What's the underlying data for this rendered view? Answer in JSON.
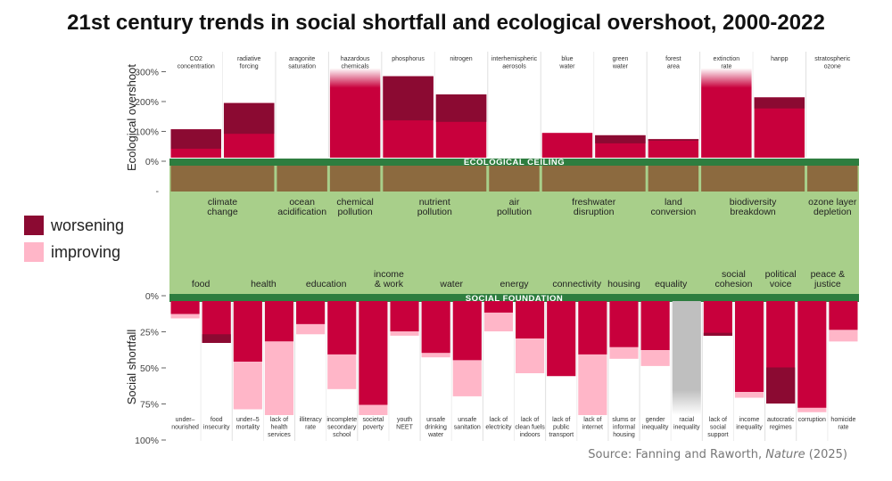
{
  "title": "21st century trends in social shortfall and ecological overshoot, 2000-2022",
  "legend": {
    "worsening": "worsening",
    "improving": "improving"
  },
  "source": {
    "prefix": "Source: Fanning and Raworth, ",
    "journal": "Nature",
    "suffix": " (2025)"
  },
  "colors": {
    "worsening": "#8b0a32",
    "improving": "#ffb6c8",
    "current": "#c8003c",
    "ceiling": "#2e7d3f",
    "doughnut": "#a8cf8a",
    "brown": "#8c6a3f",
    "grey": "#bfbfbf"
  },
  "chart_data": [
    {
      "type": "bar",
      "title": "Ecological overshoot",
      "ylabel": "Ecological overshoot",
      "ylim": [
        0,
        300
      ],
      "yticks": [
        "0%",
        "100%",
        "200%",
        "300%"
      ],
      "ceiling_label": "ECOLOGICAL CEILING",
      "groups": [
        {
          "name": "climate change",
          "lines": [
            "climate",
            "change"
          ]
        },
        {
          "name": "ocean acidification",
          "lines": [
            "ocean",
            "acidification"
          ]
        },
        {
          "name": "chemical pollution",
          "lines": [
            "chemical",
            "pollution"
          ]
        },
        {
          "name": "nutrient pollution",
          "lines": [
            "nutrient",
            "pollution"
          ]
        },
        {
          "name": "air pollution",
          "lines": [
            "air",
            "pollution"
          ]
        },
        {
          "name": "freshwater disruption",
          "lines": [
            "freshwater",
            "disruption"
          ]
        },
        {
          "name": "land conversion",
          "lines": [
            "land",
            "conversion"
          ]
        },
        {
          "name": "biodiversity breakdown",
          "lines": [
            "biodiversity",
            "breakdown"
          ]
        },
        {
          "name": "ozone layer depletion",
          "lines": [
            "ozone layer",
            "depletion"
          ]
        }
      ],
      "indicators": [
        {
          "label": [
            "CO2",
            "concentration"
          ],
          "group": 0,
          "start": 30,
          "end": 95,
          "trend": "worsening"
        },
        {
          "label": [
            "radiative",
            "forcing"
          ],
          "group": 0,
          "start": 80,
          "end": 183,
          "trend": "worsening"
        },
        {
          "label": [
            "aragonite",
            "saturation"
          ],
          "group": 1,
          "start": 0,
          "end": 0,
          "trend": "none"
        },
        {
          "label": [
            "hazardous",
            "chemicals"
          ],
          "group": 2,
          "start": 300,
          "end": 300,
          "trend": "unknown"
        },
        {
          "label": [
            "phosphorus"
          ],
          "group": 3,
          "start": 125,
          "end": 273,
          "trend": "worsening"
        },
        {
          "label": [
            "nitrogen"
          ],
          "group": 3,
          "start": 120,
          "end": 212,
          "trend": "worsening"
        },
        {
          "label": [
            "interhemispheric",
            "aerosols"
          ],
          "group": 4,
          "start": 0,
          "end": 0,
          "trend": "none"
        },
        {
          "label": [
            "blue",
            "water"
          ],
          "group": 5,
          "start": 83,
          "end": 83,
          "trend": "none"
        },
        {
          "label": [
            "green",
            "water"
          ],
          "group": 5,
          "start": 48,
          "end": 75,
          "trend": "worsening"
        },
        {
          "label": [
            "forest",
            "area"
          ],
          "group": 6,
          "start": 57,
          "end": 62,
          "trend": "worsening"
        },
        {
          "label": [
            "extinction",
            "rate"
          ],
          "group": 7,
          "start": 300,
          "end": 300,
          "trend": "unknown"
        },
        {
          "label": [
            "hanpp"
          ],
          "group": 7,
          "start": 165,
          "end": 202,
          "trend": "worsening"
        },
        {
          "label": [
            "stratospheric",
            "ozone"
          ],
          "group": 8,
          "start": 0,
          "end": 0,
          "trend": "none"
        }
      ]
    },
    {
      "type": "bar",
      "title": "Social shortfall",
      "ylabel": "Social shortfall",
      "ylim": [
        0,
        100
      ],
      "yticks": [
        "0%",
        "25%",
        "50%",
        "75%",
        "100%"
      ],
      "foundation_label": "SOCIAL FOUNDATION",
      "groups": [
        {
          "name": "food",
          "lines": [
            "food"
          ]
        },
        {
          "name": "health",
          "lines": [
            "health"
          ]
        },
        {
          "name": "education",
          "lines": [
            "education"
          ]
        },
        {
          "name": "income & work",
          "lines": [
            "income",
            "& work"
          ]
        },
        {
          "name": "water",
          "lines": [
            "water"
          ]
        },
        {
          "name": "energy",
          "lines": [
            "energy"
          ]
        },
        {
          "name": "connectivity",
          "lines": [
            "connectivity"
          ]
        },
        {
          "name": "housing",
          "lines": [
            "housing"
          ]
        },
        {
          "name": "equality",
          "lines": [
            "equality"
          ]
        },
        {
          "name": "social cohesion",
          "lines": [
            "social",
            "cohesion"
          ]
        },
        {
          "name": "political voice",
          "lines": [
            "political",
            "voice"
          ]
        },
        {
          "name": "peace & justice",
          "lines": [
            "peace &",
            "justice"
          ]
        }
      ],
      "indicators": [
        {
          "label": [
            "under–",
            "nourished"
          ],
          "group": 0,
          "start": 12,
          "end": 9,
          "trend": "improving"
        },
        {
          "label": [
            "food",
            "insecurity"
          ],
          "group": 0,
          "start": 23,
          "end": 29,
          "trend": "worsening"
        },
        {
          "label": [
            "under–5",
            "mortality"
          ],
          "group": 1,
          "start": 75,
          "end": 42,
          "trend": "improving"
        },
        {
          "label": [
            "lack of",
            "health",
            "services"
          ],
          "group": 1,
          "start": 79,
          "end": 28,
          "trend": "improving"
        },
        {
          "label": [
            "illiteracy",
            "rate"
          ],
          "group": 2,
          "start": 23,
          "end": 16,
          "trend": "improving"
        },
        {
          "label": [
            "incomplete",
            "secondary",
            "school"
          ],
          "group": 2,
          "start": 61,
          "end": 37,
          "trend": "improving"
        },
        {
          "label": [
            "societal",
            "poverty"
          ],
          "group": 3,
          "start": 79,
          "end": 72,
          "trend": "improving"
        },
        {
          "label": [
            "youth",
            "NEET"
          ],
          "group": 3,
          "start": 24,
          "end": 21,
          "trend": "improving"
        },
        {
          "label": [
            "unsafe",
            "drinking",
            "water"
          ],
          "group": 4,
          "start": 39,
          "end": 36,
          "trend": "improving"
        },
        {
          "label": [
            "unsafe",
            "sanitation"
          ],
          "group": 4,
          "start": 66,
          "end": 41,
          "trend": "improving"
        },
        {
          "label": [
            "lack of",
            "electricity"
          ],
          "group": 5,
          "start": 21,
          "end": 8,
          "trend": "improving"
        },
        {
          "label": [
            "lack of",
            "clean fuels",
            "indoors"
          ],
          "group": 5,
          "start": 50,
          "end": 26,
          "trend": "improving"
        },
        {
          "label": [
            "lack of",
            "public",
            "transport"
          ],
          "group": 6,
          "start": 52,
          "end": 52,
          "trend": "none"
        },
        {
          "label": [
            "lack of",
            "internet"
          ],
          "group": 6,
          "start": 79,
          "end": 37,
          "trend": "improving"
        },
        {
          "label": [
            "slums or",
            "informal",
            "housing"
          ],
          "group": 7,
          "start": 40,
          "end": 32,
          "trend": "improving"
        },
        {
          "label": [
            "gender",
            "inequality"
          ],
          "group": 8,
          "start": 45,
          "end": 34,
          "trend": "improving"
        },
        {
          "label": [
            "racial",
            "inequality"
          ],
          "group": 8,
          "start": 79,
          "end": 79,
          "trend": "unknown"
        },
        {
          "label": [
            "lack of",
            "social",
            "support"
          ],
          "group": 9,
          "start": 22,
          "end": 24,
          "trend": "worsening"
        },
        {
          "label": [
            "income",
            "inequality"
          ],
          "group": 9,
          "start": 67,
          "end": 63,
          "trend": "improving"
        },
        {
          "label": [
            "autocratic",
            "regimes"
          ],
          "group": 10,
          "start": 46,
          "end": 71,
          "trend": "worsening"
        },
        {
          "label": [
            "corruption"
          ],
          "group": 11,
          "start": 77,
          "end": 74,
          "trend": "improving"
        },
        {
          "label": [
            "homicide",
            "rate"
          ],
          "group": 11,
          "start": 28,
          "end": 20,
          "trend": "improving"
        }
      ]
    }
  ]
}
